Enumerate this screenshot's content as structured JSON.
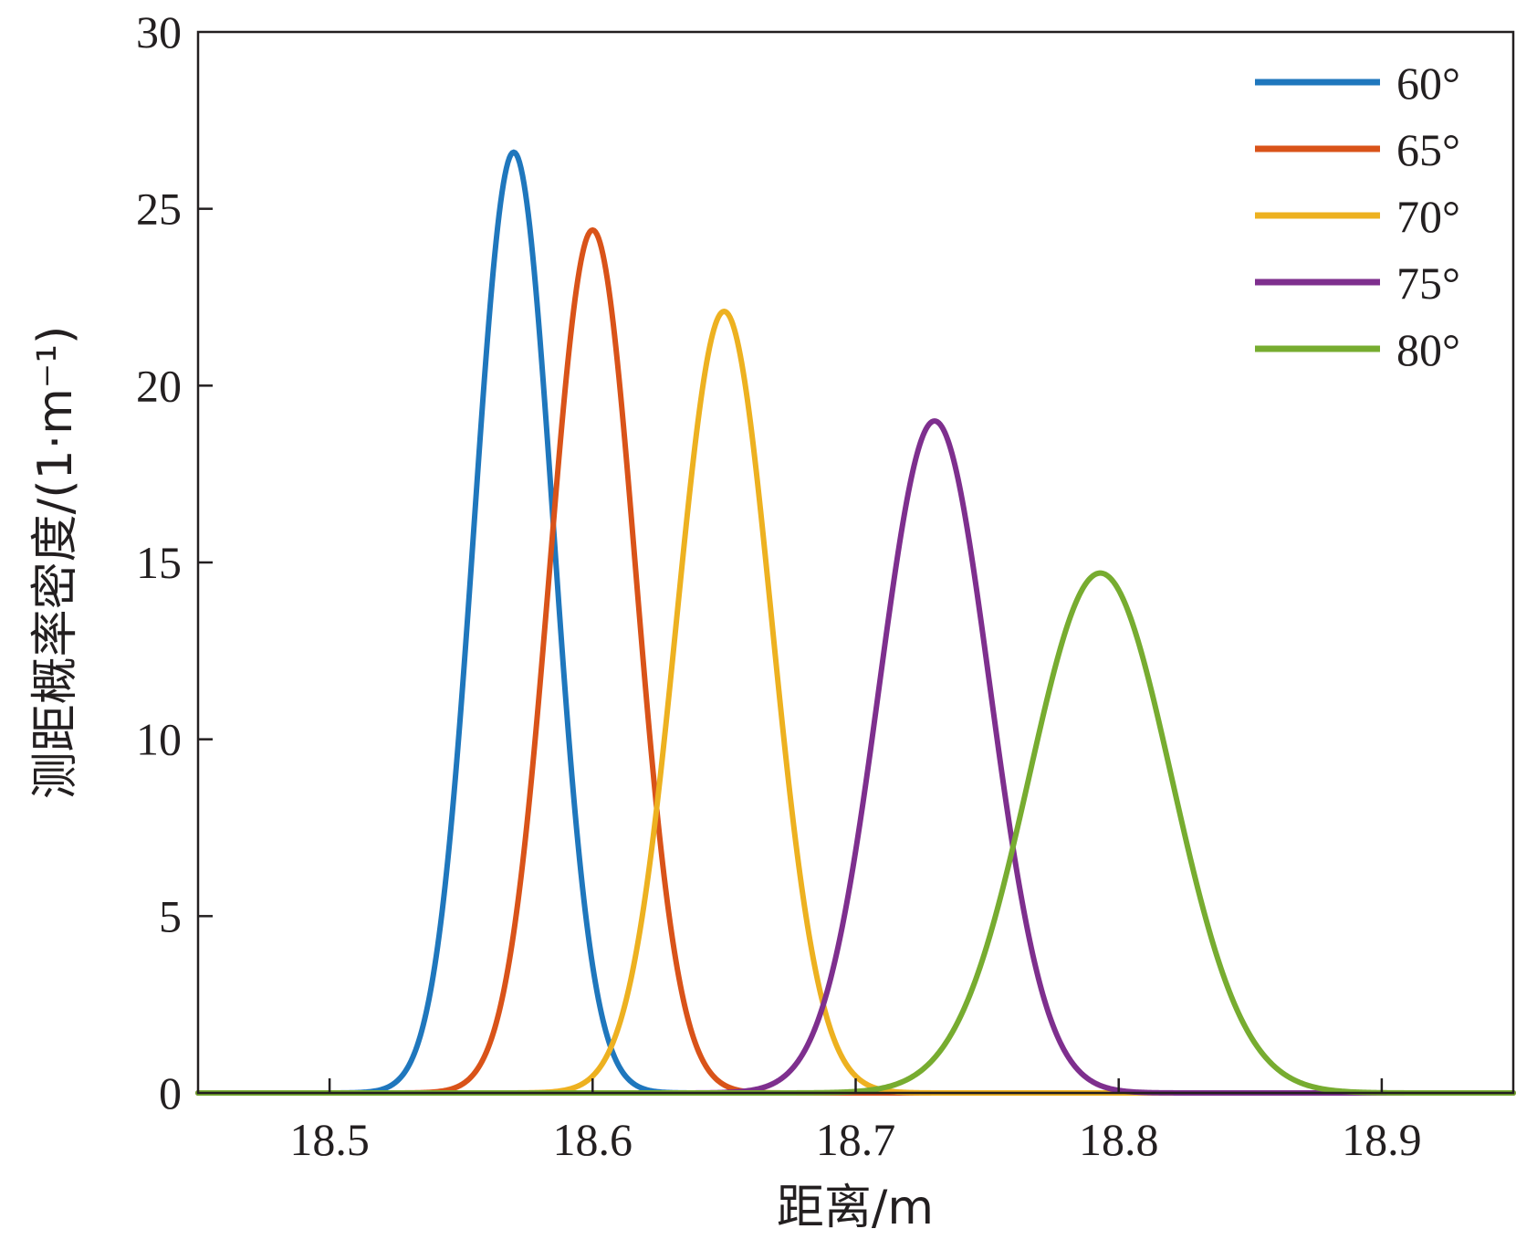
{
  "chart_data": {
    "type": "line",
    "xlabel": "距离/m",
    "ylabel": "测距概率密度/(1·m⁻¹)",
    "xlim": [
      18.45,
      18.95
    ],
    "ylim": [
      0,
      30
    ],
    "xticks": [
      18.5,
      18.6,
      18.7,
      18.8,
      18.9
    ],
    "xtick_labels": [
      "18.5",
      "18.6",
      "18.7",
      "18.8",
      "18.9"
    ],
    "yticks": [
      0,
      5,
      10,
      15,
      20,
      25,
      30
    ],
    "ytick_labels": [
      "0",
      "5",
      "10",
      "15",
      "20",
      "25",
      "30"
    ],
    "grid": false,
    "legend_position": "top-right",
    "series": [
      {
        "name": "60°",
        "color": "#1f77bd",
        "shape": "gaussian",
        "mean": 18.57,
        "peak": 26.6
      },
      {
        "name": "65°",
        "color": "#d95319",
        "shape": "gaussian",
        "mean": 18.6,
        "peak": 24.4
      },
      {
        "name": "70°",
        "color": "#edb120",
        "shape": "gaussian",
        "mean": 18.65,
        "peak": 22.1
      },
      {
        "name": "75°",
        "color": "#7e2f8e",
        "shape": "gaussian",
        "mean": 18.73,
        "peak": 19.0
      },
      {
        "name": "80°",
        "color": "#77ac30",
        "shape": "gaussian",
        "mean": 18.793,
        "peak": 14.7
      }
    ]
  }
}
